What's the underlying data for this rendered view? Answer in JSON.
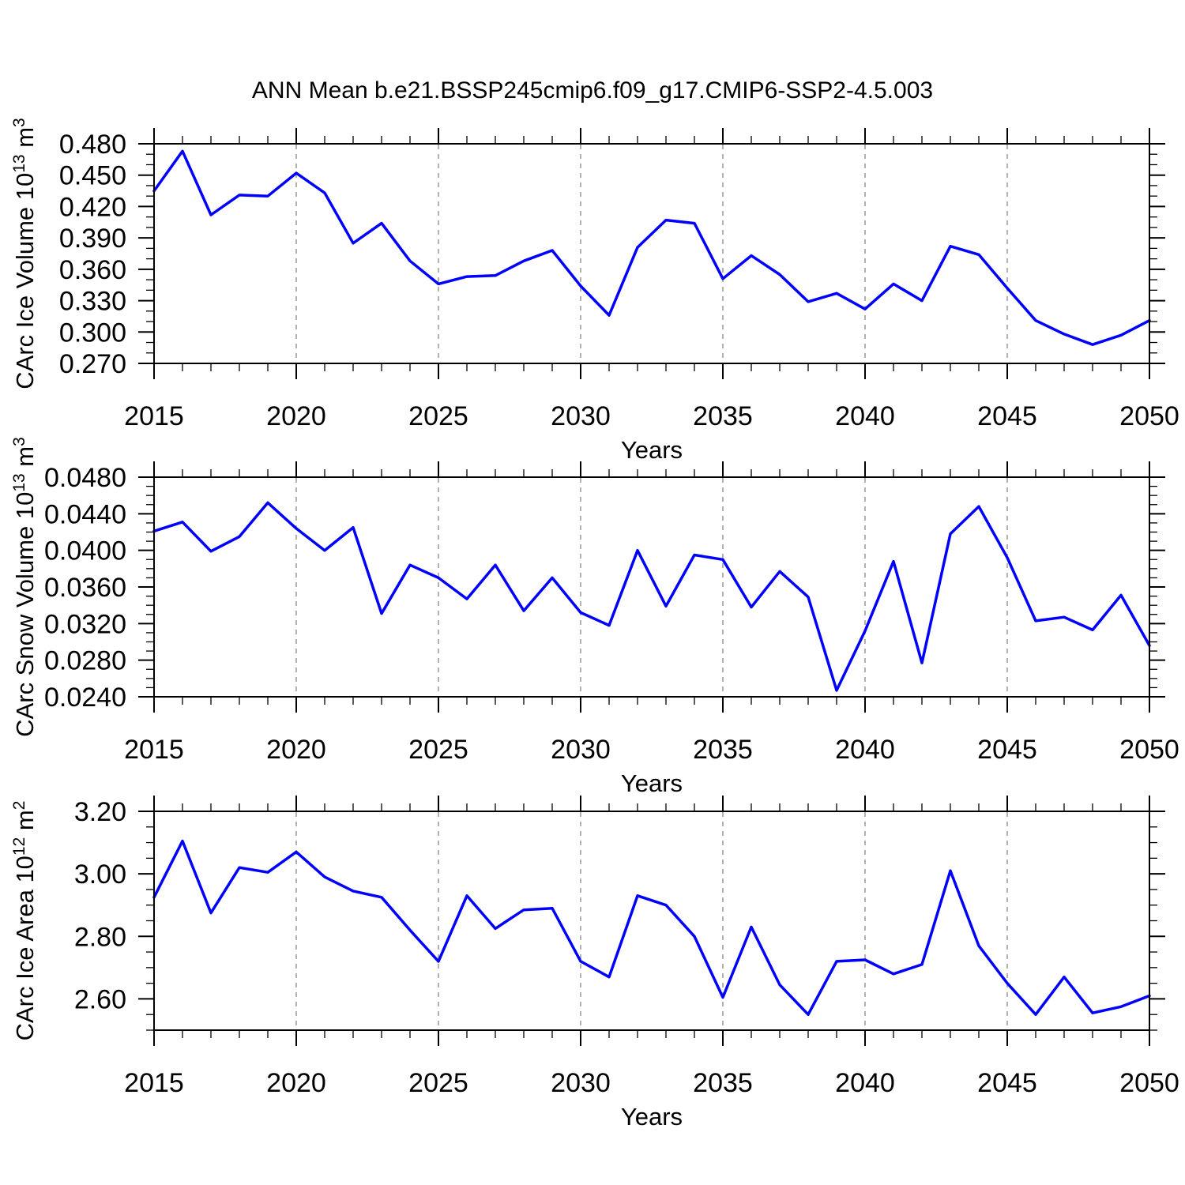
{
  "title": "ANN Mean b.e21.BSSP245cmip6.f09_g17.CMIP6-SSP2-4.5.003",
  "colors": {
    "line": "#0000ff",
    "grid": "#999999",
    "axis": "#000000",
    "text": "#000000",
    "background": "#ffffff"
  },
  "chart_data": [
    {
      "type": "line",
      "id": "carc-ice-volume",
      "ylabel": "CArc Ice Volume 10^13 m^3",
      "ylabel_parts": [
        {
          "t": "CArc Ice Volume 10"
        },
        {
          "t": "13",
          "sup": true
        },
        {
          "t": " m"
        },
        {
          "t": "3",
          "sup": true
        }
      ],
      "xlabel": "Years",
      "xlim": [
        2015,
        2050
      ],
      "ylim": [
        0.27,
        0.48
      ],
      "x_major_ticks": [
        {
          "v": 2015,
          "label": "2015"
        },
        {
          "v": 2020,
          "label": "2020"
        },
        {
          "v": 2025,
          "label": "2025"
        },
        {
          "v": 2030,
          "label": "2030"
        },
        {
          "v": 2035,
          "label": "2035"
        },
        {
          "v": 2040,
          "label": "2040"
        },
        {
          "v": 2045,
          "label": "2045"
        },
        {
          "v": 2050,
          "label": "2050"
        }
      ],
      "x_minor_step": 1,
      "y_major_ticks": [
        {
          "v": 0.48,
          "label": "0.480"
        },
        {
          "v": 0.45,
          "label": "0.450"
        },
        {
          "v": 0.42,
          "label": "0.420"
        },
        {
          "v": 0.39,
          "label": "0.390"
        },
        {
          "v": 0.36,
          "label": "0.360"
        },
        {
          "v": 0.33,
          "label": "0.330"
        },
        {
          "v": 0.3,
          "label": "0.300"
        },
        {
          "v": 0.27,
          "label": "0.270"
        }
      ],
      "y_minor_step": 0.01,
      "grid_x": [
        2020,
        2025,
        2030,
        2035,
        2040,
        2045
      ],
      "grid_style": "vertical-dashed",
      "legend": "none",
      "x": [
        2015,
        2016,
        2017,
        2018,
        2019,
        2020,
        2021,
        2022,
        2023,
        2024,
        2025,
        2026,
        2027,
        2028,
        2029,
        2030,
        2031,
        2032,
        2033,
        2034,
        2035,
        2036,
        2037,
        2038,
        2039,
        2040,
        2041,
        2042,
        2043,
        2044,
        2045,
        2046,
        2047,
        2048,
        2049,
        2050
      ],
      "values": [
        0.435,
        0.473,
        0.412,
        0.431,
        0.43,
        0.452,
        0.433,
        0.385,
        0.404,
        0.368,
        0.346,
        0.353,
        0.354,
        0.368,
        0.378,
        0.344,
        0.316,
        0.381,
        0.407,
        0.404,
        0.351,
        0.373,
        0.355,
        0.329,
        0.337,
        0.322,
        0.346,
        0.33,
        0.382,
        0.374,
        0.342,
        0.311,
        0.298,
        0.288,
        0.297,
        0.311
      ]
    },
    {
      "type": "line",
      "id": "carc-snow-volume",
      "ylabel": "CArc Snow Volume 10^13 m^3",
      "ylabel_parts": [
        {
          "t": "CArc Snow Volume 10"
        },
        {
          "t": "13",
          "sup": true
        },
        {
          "t": " m"
        },
        {
          "t": "3",
          "sup": true
        }
      ],
      "xlabel": "Years",
      "xlim": [
        2015,
        2050
      ],
      "ylim": [
        0.024,
        0.048
      ],
      "x_major_ticks": [
        {
          "v": 2015,
          "label": "2015"
        },
        {
          "v": 2020,
          "label": "2020"
        },
        {
          "v": 2025,
          "label": "2025"
        },
        {
          "v": 2030,
          "label": "2030"
        },
        {
          "v": 2035,
          "label": "2035"
        },
        {
          "v": 2040,
          "label": "2040"
        },
        {
          "v": 2045,
          "label": "2045"
        },
        {
          "v": 2050,
          "label": "2050"
        }
      ],
      "x_minor_step": 1,
      "y_major_ticks": [
        {
          "v": 0.048,
          "label": "0.0480"
        },
        {
          "v": 0.044,
          "label": "0.0440"
        },
        {
          "v": 0.04,
          "label": "0.0400"
        },
        {
          "v": 0.036,
          "label": "0.0360"
        },
        {
          "v": 0.032,
          "label": "0.0320"
        },
        {
          "v": 0.028,
          "label": "0.0280"
        },
        {
          "v": 0.024,
          "label": "0.0240"
        }
      ],
      "y_minor_step": 0.001,
      "grid_x": [
        2020,
        2025,
        2030,
        2035,
        2040,
        2045
      ],
      "grid_style": "vertical-dashed",
      "legend": "none",
      "x": [
        2015,
        2016,
        2017,
        2018,
        2019,
        2020,
        2021,
        2022,
        2023,
        2024,
        2025,
        2026,
        2027,
        2028,
        2029,
        2030,
        2031,
        2032,
        2033,
        2034,
        2035,
        2036,
        2037,
        2038,
        2039,
        2040,
        2041,
        2042,
        2043,
        2044,
        2045,
        2046,
        2047,
        2048,
        2049,
        2050
      ],
      "values": [
        0.0421,
        0.0431,
        0.0399,
        0.0415,
        0.0452,
        0.0424,
        0.04,
        0.0425,
        0.0331,
        0.0384,
        0.037,
        0.0347,
        0.0384,
        0.0334,
        0.037,
        0.0332,
        0.0318,
        0.04,
        0.0339,
        0.0395,
        0.039,
        0.0338,
        0.0377,
        0.0349,
        0.0247,
        0.0312,
        0.0388,
        0.0277,
        0.0418,
        0.0448,
        0.0392,
        0.0323,
        0.0327,
        0.0313,
        0.0351,
        0.0296
      ]
    },
    {
      "type": "line",
      "id": "carc-ice-area",
      "ylabel": "CArc Ice Area 10^12 m^2",
      "ylabel_parts": [
        {
          "t": "CArc Ice Area 10"
        },
        {
          "t": "12",
          "sup": true
        },
        {
          "t": " m"
        },
        {
          "t": "2",
          "sup": true
        }
      ],
      "xlabel": "Years",
      "xlim": [
        2015,
        2050
      ],
      "ylim": [
        2.5,
        3.2
      ],
      "x_major_ticks": [
        {
          "v": 2015,
          "label": "2015"
        },
        {
          "v": 2020,
          "label": "2020"
        },
        {
          "v": 2025,
          "label": "2025"
        },
        {
          "v": 2030,
          "label": "2030"
        },
        {
          "v": 2035,
          "label": "2035"
        },
        {
          "v": 2040,
          "label": "2040"
        },
        {
          "v": 2045,
          "label": "2045"
        },
        {
          "v": 2050,
          "label": "2050"
        }
      ],
      "x_minor_step": 1,
      "y_major_ticks": [
        {
          "v": 3.2,
          "label": "3.20"
        },
        {
          "v": 3.0,
          "label": "3.00"
        },
        {
          "v": 2.8,
          "label": "2.80"
        },
        {
          "v": 2.6,
          "label": "2.60"
        }
      ],
      "y_minor_step": 0.05,
      "grid_x": [
        2020,
        2025,
        2030,
        2035,
        2040,
        2045
      ],
      "grid_style": "vertical-dashed",
      "legend": "none",
      "x": [
        2015,
        2016,
        2017,
        2018,
        2019,
        2020,
        2021,
        2022,
        2023,
        2024,
        2025,
        2026,
        2027,
        2028,
        2029,
        2030,
        2031,
        2032,
        2033,
        2034,
        2035,
        2036,
        2037,
        2038,
        2039,
        2040,
        2041,
        2042,
        2043,
        2044,
        2045,
        2046,
        2047,
        2048,
        2049,
        2050
      ],
      "values": [
        2.925,
        3.105,
        2.875,
        3.02,
        3.005,
        3.07,
        2.99,
        2.945,
        2.925,
        2.82,
        2.72,
        2.93,
        2.825,
        2.885,
        2.89,
        2.72,
        2.67,
        2.93,
        2.9,
        2.8,
        2.605,
        2.83,
        2.645,
        2.55,
        2.72,
        2.725,
        2.68,
        2.71,
        3.01,
        2.77,
        2.65,
        2.55,
        2.67,
        2.555,
        2.575,
        2.61
      ]
    }
  ]
}
